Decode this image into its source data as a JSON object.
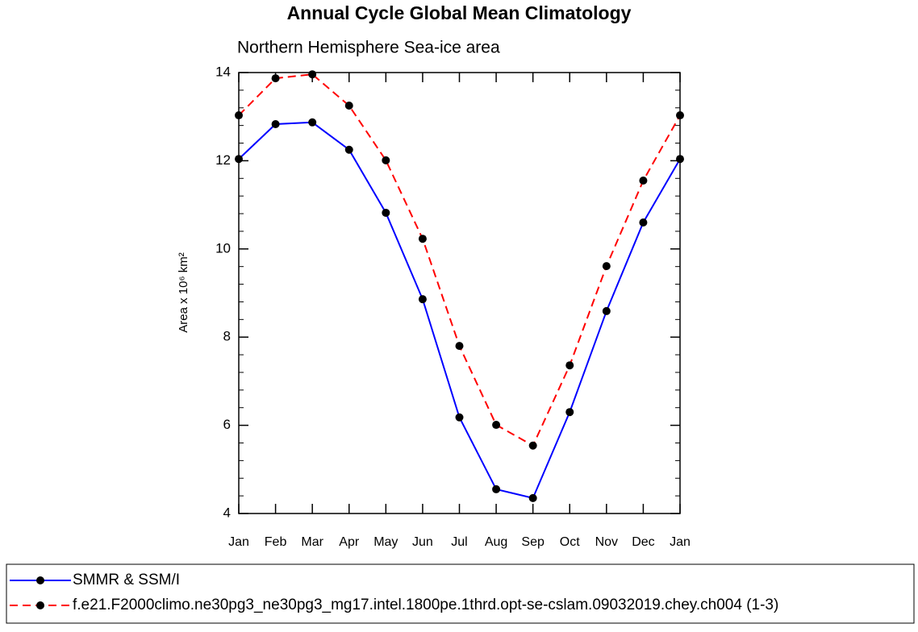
{
  "chart_data": {
    "type": "line",
    "title": "Annual Cycle Global Mean Climatology",
    "subtitle": "Northern Hemisphere Sea-ice area",
    "y_label": "Area x 10⁶ km²",
    "categories": [
      "Jan",
      "Feb",
      "Mar",
      "Apr",
      "May",
      "Jun",
      "Jul",
      "Aug",
      "Sep",
      "Oct",
      "Nov",
      "Dec",
      "Jan"
    ],
    "ylim": [
      4,
      14
    ],
    "yticks": [
      4,
      6,
      8,
      10,
      12,
      14
    ],
    "series": [
      {
        "name": "SMMR & SSM/I",
        "color": "#0000ff",
        "linestyle": "solid",
        "values": [
          12.04,
          12.83,
          12.87,
          12.25,
          10.82,
          8.86,
          6.18,
          4.55,
          4.35,
          6.3,
          8.59,
          10.6,
          12.04
        ]
      },
      {
        "name": "f.e21.F2000climo.ne30pg3_ne30pg3_mg17.intel.1800pe.1thrd.opt-se-cslam.09032019.chey.ch004 (1-3)",
        "color": "#ff0000",
        "linestyle": "dashed",
        "values": [
          13.03,
          13.87,
          13.96,
          13.25,
          12.01,
          10.23,
          7.8,
          6.01,
          5.54,
          7.36,
          9.61,
          11.55,
          13.03
        ]
      }
    ]
  }
}
